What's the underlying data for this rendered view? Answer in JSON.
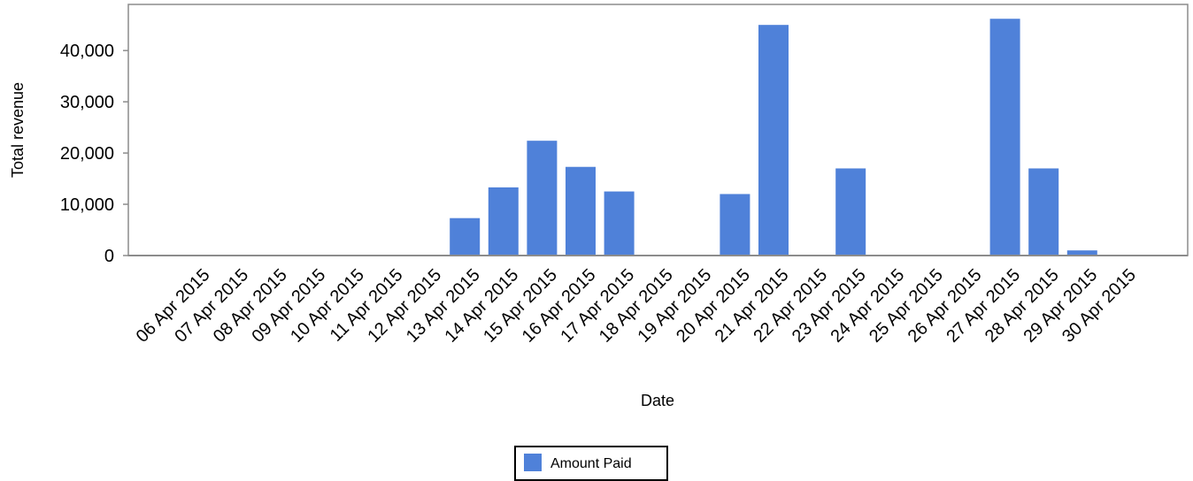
{
  "chart_data": {
    "type": "bar",
    "title": "",
    "xlabel": "Date",
    "ylabel": "Total revenue",
    "ylim": [
      0,
      49000
    ],
    "yticks": [
      0,
      10000,
      20000,
      30000,
      40000
    ],
    "ytick_labels": [
      "0",
      "10,000",
      "20,000",
      "30,000",
      "40,000"
    ],
    "grid": false,
    "legend_position": "bottom-center",
    "bar_color": "#4f81d9",
    "categories": [
      "06 Apr 2015",
      "07 Apr 2015",
      "08 Apr 2015",
      "09 Apr 2015",
      "10 Apr 2015",
      "11 Apr 2015",
      "12 Apr 2015",
      "13 Apr 2015",
      "14 Apr 2015",
      "15 Apr 2015",
      "16 Apr 2015",
      "17 Apr 2015",
      "18 Apr 2015",
      "19 Apr 2015",
      "20 Apr 2015",
      "21 Apr 2015",
      "22 Apr 2015",
      "23 Apr 2015",
      "24 Apr 2015",
      "25 Apr 2015",
      "26 Apr 2015",
      "27 Apr 2015",
      "28 Apr 2015",
      "29 Apr 2015",
      "30 Apr 2015"
    ],
    "series": [
      {
        "name": "Amount Paid",
        "values": [
          0,
          0,
          0,
          0,
          0,
          0,
          0,
          7300,
          13300,
          22400,
          17300,
          12500,
          0,
          0,
          12000,
          45000,
          0,
          17000,
          0,
          0,
          0,
          46200,
          17000,
          1000,
          0
        ]
      }
    ]
  }
}
